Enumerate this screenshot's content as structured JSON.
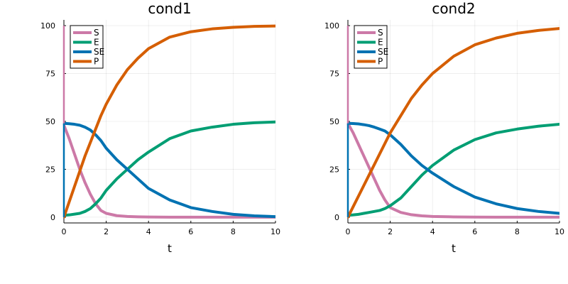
{
  "chart_data": [
    {
      "type": "line",
      "title": "cond1",
      "xlabel": "t",
      "ylabel": "",
      "xlim": [
        0,
        10
      ],
      "ylim": [
        -3,
        103
      ],
      "xticks": [
        "0",
        "2",
        "4",
        "6",
        "8",
        "10"
      ],
      "yticks": [
        "0",
        "25",
        "50",
        "75",
        "100"
      ],
      "grid": true,
      "legend": "top-left",
      "x": [
        0,
        0.25,
        0.5,
        0.75,
        1,
        1.25,
        1.5,
        1.75,
        2,
        2.5,
        3,
        3.5,
        4,
        5,
        6,
        7,
        8,
        9,
        10
      ],
      "series": [
        {
          "name": "S",
          "color": "#CC79A7",
          "values": [
            48,
            41,
            33,
            25,
            18,
            12,
            7,
            3.5,
            2,
            0.8,
            0.4,
            0.2,
            0.1,
            0,
            0,
            0,
            0,
            0,
            0
          ]
        },
        {
          "name": "E",
          "color": "#009E73",
          "values": [
            1,
            1.2,
            1.6,
            2,
            3,
            4.5,
            7,
            10,
            14,
            20,
            25,
            30,
            34,
            41,
            45,
            47,
            48.5,
            49.3,
            49.7
          ]
        },
        {
          "name": "SE",
          "color": "#0072B2",
          "values": [
            49,
            48.8,
            48.5,
            48,
            47,
            45.5,
            43,
            40,
            36,
            30,
            25,
            20,
            15,
            9,
            5,
            3,
            1.5,
            0.7,
            0.3
          ]
        },
        {
          "name": "P",
          "color": "#D55E00",
          "values": [
            0,
            8,
            16,
            24,
            32,
            39,
            46,
            53,
            59,
            69,
            77,
            83,
            88,
            94,
            96.8,
            98.3,
            99.1,
            99.6,
            99.8
          ]
        }
      ]
    },
    {
      "type": "line",
      "title": "cond2",
      "xlabel": "t",
      "ylabel": "",
      "xlim": [
        0,
        10
      ],
      "ylim": [
        -3,
        103
      ],
      "xticks": [
        "0",
        "2",
        "4",
        "6",
        "8",
        "10"
      ],
      "yticks": [
        "0",
        "25",
        "50",
        "75",
        "100"
      ],
      "grid": true,
      "legend": "top-left",
      "x": [
        0,
        0.25,
        0.5,
        0.75,
        1,
        1.25,
        1.5,
        1.75,
        2,
        2.5,
        3,
        3.5,
        4,
        5,
        6,
        7,
        8,
        9,
        10
      ],
      "series": [
        {
          "name": "S",
          "color": "#CC79A7",
          "values": [
            49,
            44,
            38,
            32,
            26,
            20,
            14,
            9,
            5,
            2.5,
            1.3,
            0.7,
            0.4,
            0.15,
            0.05,
            0,
            0,
            0,
            0
          ]
        },
        {
          "name": "E",
          "color": "#009E73",
          "values": [
            1,
            1.2,
            1.5,
            2,
            2.5,
            3,
            3.5,
            4.5,
            6,
            10,
            16,
            22,
            27,
            35,
            40.5,
            44,
            46,
            47.5,
            48.5
          ]
        },
        {
          "name": "SE",
          "color": "#0072B2",
          "values": [
            49,
            48.9,
            48.7,
            48.3,
            47.8,
            47,
            46,
            45,
            43,
            38,
            32,
            27,
            23,
            16,
            10.5,
            7,
            4.5,
            3,
            2
          ]
        },
        {
          "name": "P",
          "color": "#D55E00",
          "values": [
            0,
            5.5,
            11,
            16.5,
            22,
            27.5,
            33,
            38.5,
            44,
            53,
            62,
            69,
            75,
            84,
            90,
            93.5,
            96,
            97.5,
            98.5
          ]
        }
      ]
    }
  ]
}
